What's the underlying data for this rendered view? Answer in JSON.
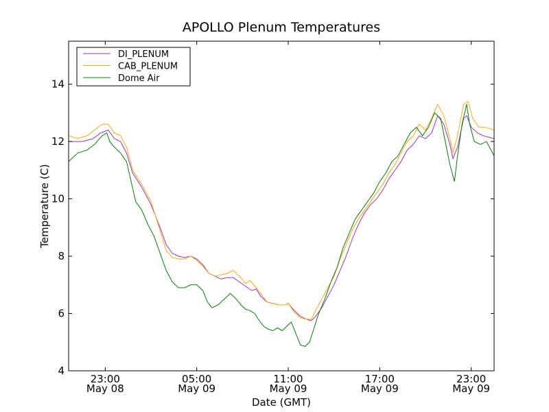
{
  "chart_data": {
    "type": "line",
    "title": "APOLLO Plenum Temperatures",
    "xlabel": "Date (GMT)",
    "ylabel": "Temperature (C)",
    "x_unit": "hours since 2009-05-08 00:00 GMT",
    "xlim": [
      20.6,
      48.5
    ],
    "ylim": [
      4,
      15.5
    ],
    "yticks": [
      4,
      6,
      8,
      10,
      12,
      14
    ],
    "xticks": [
      {
        "x": 23,
        "time": "23:00",
        "date": "May 08"
      },
      {
        "x": 29,
        "time": "05:00",
        "date": "May 09"
      },
      {
        "x": 35,
        "time": "11:00",
        "date": "May 09"
      },
      {
        "x": 41,
        "time": "17:00",
        "date": "May 09"
      },
      {
        "x": 47,
        "time": "23:00",
        "date": "May 09"
      }
    ],
    "legend_location": "upper-left",
    "series": [
      {
        "name": "DI_PLENUM",
        "color": "#9932cc",
        "points": [
          [
            20.6,
            12.0
          ],
          [
            21.5,
            12.0
          ],
          [
            22.2,
            12.1
          ],
          [
            22.7,
            12.3
          ],
          [
            23.2,
            12.4
          ],
          [
            23.6,
            12.1
          ],
          [
            24.0,
            12.0
          ],
          [
            24.4,
            11.6
          ],
          [
            24.8,
            10.9
          ],
          [
            25.4,
            10.4
          ],
          [
            26.0,
            9.8
          ],
          [
            26.6,
            9.0
          ],
          [
            27.0,
            8.4
          ],
          [
            27.4,
            8.1
          ],
          [
            27.8,
            8.0
          ],
          [
            28.2,
            7.95
          ],
          [
            28.6,
            8.0
          ],
          [
            29.0,
            7.9
          ],
          [
            29.4,
            7.7
          ],
          [
            29.8,
            7.4
          ],
          [
            30.2,
            7.3
          ],
          [
            30.6,
            7.2
          ],
          [
            31.0,
            7.25
          ],
          [
            31.4,
            7.25
          ],
          [
            31.8,
            7.1
          ],
          [
            32.2,
            6.95
          ],
          [
            32.6,
            6.8
          ],
          [
            32.9,
            6.85
          ],
          [
            33.2,
            6.6
          ],
          [
            33.6,
            6.4
          ],
          [
            34.0,
            6.35
          ],
          [
            34.4,
            6.3
          ],
          [
            34.8,
            6.3
          ],
          [
            35.0,
            6.35
          ],
          [
            35.4,
            6.1
          ],
          [
            35.8,
            5.9
          ],
          [
            36.2,
            5.8
          ],
          [
            36.5,
            5.75
          ],
          [
            36.8,
            5.9
          ],
          [
            37.2,
            6.2
          ],
          [
            37.6,
            6.6
          ],
          [
            38.0,
            7.0
          ],
          [
            38.4,
            7.5
          ],
          [
            38.8,
            8.0
          ],
          [
            39.2,
            8.6
          ],
          [
            39.6,
            9.1
          ],
          [
            40.0,
            9.5
          ],
          [
            40.4,
            9.8
          ],
          [
            40.8,
            10.0
          ],
          [
            41.2,
            10.3
          ],
          [
            41.6,
            10.7
          ],
          [
            42.0,
            11.0
          ],
          [
            42.4,
            11.3
          ],
          [
            42.8,
            11.7
          ],
          [
            43.2,
            11.9
          ],
          [
            43.6,
            12.2
          ],
          [
            44.0,
            12.1
          ],
          [
            44.4,
            12.3
          ],
          [
            44.8,
            12.9
          ],
          [
            45.2,
            12.6
          ],
          [
            45.6,
            11.9
          ],
          [
            45.8,
            11.4
          ],
          [
            46.1,
            11.8
          ],
          [
            46.5,
            12.8
          ],
          [
            46.7,
            12.9
          ],
          [
            47.0,
            12.5
          ],
          [
            47.4,
            12.3
          ],
          [
            47.8,
            12.2
          ],
          [
            48.5,
            12.1
          ]
        ]
      },
      {
        "name": "CAB_PLENUM",
        "color": "#ffa500",
        "points": [
          [
            20.6,
            12.2
          ],
          [
            21.2,
            12.1
          ],
          [
            21.8,
            12.2
          ],
          [
            22.3,
            12.4
          ],
          [
            22.8,
            12.6
          ],
          [
            23.2,
            12.6
          ],
          [
            23.6,
            12.3
          ],
          [
            24.0,
            12.2
          ],
          [
            24.4,
            11.8
          ],
          [
            24.8,
            11.0
          ],
          [
            25.4,
            10.5
          ],
          [
            26.0,
            9.9
          ],
          [
            26.6,
            8.9
          ],
          [
            27.0,
            8.2
          ],
          [
            27.4,
            7.95
          ],
          [
            27.8,
            7.9
          ],
          [
            28.2,
            7.9
          ],
          [
            28.6,
            8.0
          ],
          [
            29.0,
            7.85
          ],
          [
            29.4,
            7.65
          ],
          [
            29.8,
            7.4
          ],
          [
            30.2,
            7.3
          ],
          [
            30.6,
            7.35
          ],
          [
            31.0,
            7.4
          ],
          [
            31.4,
            7.5
          ],
          [
            31.8,
            7.3
          ],
          [
            32.2,
            7.05
          ],
          [
            32.5,
            7.15
          ],
          [
            32.9,
            6.9
          ],
          [
            33.2,
            6.7
          ],
          [
            33.6,
            6.4
          ],
          [
            34.0,
            6.35
          ],
          [
            34.4,
            6.3
          ],
          [
            34.8,
            6.3
          ],
          [
            35.0,
            6.35
          ],
          [
            35.4,
            6.05
          ],
          [
            35.8,
            5.85
          ],
          [
            36.2,
            5.8
          ],
          [
            36.5,
            5.8
          ],
          [
            36.8,
            6.1
          ],
          [
            37.2,
            6.5
          ],
          [
            37.6,
            6.9
          ],
          [
            38.0,
            7.3
          ],
          [
            38.4,
            7.9
          ],
          [
            38.8,
            8.4
          ],
          [
            39.2,
            8.9
          ],
          [
            39.6,
            9.3
          ],
          [
            40.0,
            9.6
          ],
          [
            40.4,
            9.9
          ],
          [
            40.8,
            10.2
          ],
          [
            41.2,
            10.5
          ],
          [
            41.6,
            10.9
          ],
          [
            42.0,
            11.2
          ],
          [
            42.4,
            11.6
          ],
          [
            42.8,
            12.0
          ],
          [
            43.2,
            12.2
          ],
          [
            43.6,
            12.6
          ],
          [
            44.0,
            12.4
          ],
          [
            44.4,
            12.8
          ],
          [
            44.8,
            13.3
          ],
          [
            45.2,
            12.9
          ],
          [
            45.6,
            12.1
          ],
          [
            45.8,
            11.6
          ],
          [
            46.1,
            12.2
          ],
          [
            46.5,
            13.3
          ],
          [
            46.8,
            13.4
          ],
          [
            47.1,
            12.8
          ],
          [
            47.5,
            12.5
          ],
          [
            47.9,
            12.5
          ],
          [
            48.5,
            12.4
          ]
        ]
      },
      {
        "name": "Dome Air",
        "color": "#008000",
        "points": [
          [
            20.6,
            11.3
          ],
          [
            21.2,
            11.6
          ],
          [
            21.8,
            11.7
          ],
          [
            22.3,
            11.9
          ],
          [
            22.8,
            12.2
          ],
          [
            23.1,
            12.3
          ],
          [
            23.3,
            12.0
          ],
          [
            23.6,
            11.8
          ],
          [
            24.0,
            11.6
          ],
          [
            24.4,
            11.3
          ],
          [
            24.7,
            10.6
          ],
          [
            25.0,
            9.9
          ],
          [
            25.4,
            9.6
          ],
          [
            25.8,
            9.1
          ],
          [
            26.2,
            8.7
          ],
          [
            26.6,
            8.1
          ],
          [
            27.0,
            7.5
          ],
          [
            27.4,
            7.1
          ],
          [
            27.8,
            6.9
          ],
          [
            28.2,
            6.9
          ],
          [
            28.6,
            7.0
          ],
          [
            29.0,
            7.0
          ],
          [
            29.4,
            6.8
          ],
          [
            29.7,
            6.4
          ],
          [
            30.0,
            6.2
          ],
          [
            30.4,
            6.3
          ],
          [
            30.8,
            6.5
          ],
          [
            31.2,
            6.7
          ],
          [
            31.6,
            6.5
          ],
          [
            31.9,
            6.3
          ],
          [
            32.2,
            6.15
          ],
          [
            32.5,
            6.1
          ],
          [
            32.8,
            6.0
          ],
          [
            33.1,
            5.75
          ],
          [
            33.4,
            5.55
          ],
          [
            33.7,
            5.45
          ],
          [
            34.0,
            5.4
          ],
          [
            34.3,
            5.5
          ],
          [
            34.6,
            5.4
          ],
          [
            34.9,
            5.55
          ],
          [
            35.2,
            5.7
          ],
          [
            35.5,
            5.3
          ],
          [
            35.8,
            4.9
          ],
          [
            36.1,
            4.85
          ],
          [
            36.4,
            5.0
          ],
          [
            36.7,
            5.5
          ],
          [
            37.0,
            6.0
          ],
          [
            37.4,
            6.5
          ],
          [
            37.8,
            7.1
          ],
          [
            38.2,
            7.6
          ],
          [
            38.6,
            8.3
          ],
          [
            39.0,
            8.8
          ],
          [
            39.4,
            9.3
          ],
          [
            39.8,
            9.6
          ],
          [
            40.2,
            9.9
          ],
          [
            40.6,
            10.2
          ],
          [
            41.0,
            10.6
          ],
          [
            41.4,
            10.9
          ],
          [
            41.8,
            11.3
          ],
          [
            42.2,
            11.5
          ],
          [
            42.6,
            11.9
          ],
          [
            43.0,
            12.3
          ],
          [
            43.4,
            12.5
          ],
          [
            43.8,
            12.2
          ],
          [
            44.2,
            12.5
          ],
          [
            44.6,
            13.0
          ],
          [
            45.0,
            12.8
          ],
          [
            45.3,
            12.0
          ],
          [
            45.6,
            11.2
          ],
          [
            45.9,
            10.6
          ],
          [
            46.1,
            11.5
          ],
          [
            46.4,
            12.6
          ],
          [
            46.7,
            13.3
          ],
          [
            46.9,
            12.6
          ],
          [
            47.2,
            12.0
          ],
          [
            47.6,
            11.9
          ],
          [
            48.0,
            12.0
          ],
          [
            48.5,
            11.5
          ]
        ]
      }
    ]
  }
}
